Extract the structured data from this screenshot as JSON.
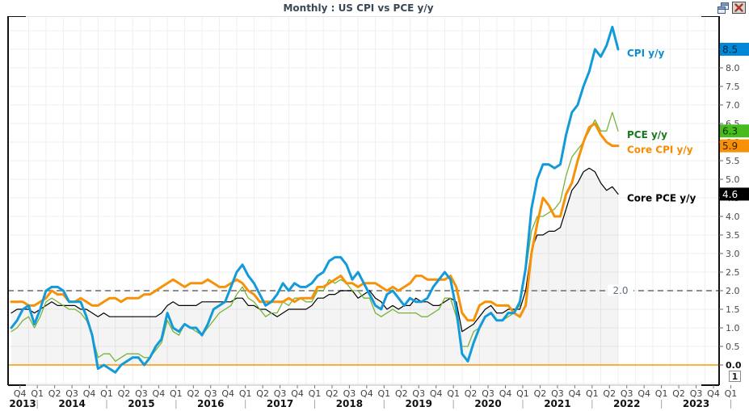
{
  "window": {
    "title": "Monthly : US CPI vs PCE y/y"
  },
  "chart_data": {
    "type": "line",
    "title": "Monthly : US CPI vs PCE y/y",
    "frequency": "monthly",
    "x_start_month": "2013-10",
    "x_end_month": "2022-07",
    "ylim": [
      -0.55,
      9.4
    ],
    "grid": true,
    "legend_position": "inline-right",
    "pane_indicator": "1",
    "colors": {
      "grid": "#efefef",
      "frame_gray": "#c6c6c6",
      "frame_black": "#111111",
      "axis_text": "#3f3f3f",
      "year_text": "#111111",
      "tick_text": "#4a4a4a",
      "title_text": "#3a4856"
    },
    "y_axis": {
      "tick_labels": [
        "0.0",
        "0.5",
        "1.0",
        "1.5",
        "2.0",
        "2.5",
        "3.0",
        "3.5",
        "4.0",
        "4.5",
        "5.0",
        "5.5",
        "6.0",
        "6.5",
        "7.0",
        "7.5",
        "8.0",
        "8.5"
      ]
    },
    "x_axis": {
      "quarter_labels": [
        "Q4",
        "Q1",
        "Q2",
        "Q3",
        "Q4",
        "Q1",
        "Q2",
        "Q3",
        "Q4",
        "Q1",
        "Q2",
        "Q3",
        "Q4",
        "Q1",
        "Q2",
        "Q3",
        "Q4",
        "Q1",
        "Q2",
        "Q3",
        "Q4",
        "Q1",
        "Q2",
        "Q3",
        "Q4",
        "Q1",
        "Q2",
        "Q3",
        "Q4",
        "Q1",
        "Q2",
        "Q3",
        "Q4",
        "Q1",
        "Q2",
        "Q3",
        "Q4",
        "Q1",
        "Q2",
        "Q3",
        "Q4",
        "Q1"
      ],
      "year_labels": [
        "2013",
        "2014",
        "2015",
        "2016",
        "2017",
        "2018",
        "2019",
        "2020",
        "2021",
        "2022",
        "2023"
      ]
    },
    "reference_lines": [
      {
        "value": 2.0,
        "label": "2.0",
        "style": "dashed",
        "color": "#8f8f8f",
        "width": 2,
        "label_color": "#5f6e7e"
      },
      {
        "value": 0.0,
        "style": "solid",
        "color": "#ff9800",
        "width": 1.4
      }
    ],
    "series": [
      {
        "name": "CPI y/y",
        "z": 4,
        "width": 3,
        "line_color": "#129ad9",
        "label_color": "#0d8ecf",
        "badge": {
          "value": "8.5",
          "bg": "#0087d7",
          "text_color": "#002a40"
        },
        "values": [
          1.0,
          1.2,
          1.5,
          1.6,
          1.1,
          1.5,
          2.0,
          2.1,
          2.1,
          2.0,
          1.7,
          1.7,
          1.7,
          1.3,
          0.8,
          -0.1,
          0.0,
          -0.1,
          -0.2,
          0.0,
          0.1,
          0.2,
          0.2,
          0.0,
          0.2,
          0.5,
          0.7,
          1.4,
          1.0,
          0.9,
          1.1,
          1.0,
          1.0,
          0.8,
          1.1,
          1.5,
          1.6,
          1.7,
          2.1,
          2.5,
          2.7,
          2.4,
          2.2,
          1.9,
          1.6,
          1.7,
          1.9,
          2.2,
          2.0,
          2.2,
          2.1,
          2.1,
          2.2,
          2.4,
          2.5,
          2.8,
          2.9,
          2.9,
          2.7,
          2.3,
          2.5,
          2.2,
          1.9,
          1.6,
          1.5,
          1.9,
          2.0,
          1.8,
          1.6,
          1.8,
          1.7,
          1.7,
          1.8,
          2.1,
          2.3,
          2.5,
          2.3,
          1.5,
          0.3,
          0.1,
          0.6,
          1.0,
          1.3,
          1.4,
          1.2,
          1.2,
          1.4,
          1.4,
          1.7,
          2.6,
          4.2,
          5.0,
          5.4,
          5.4,
          5.3,
          5.4,
          6.2,
          6.8,
          7.0,
          7.5,
          7.9,
          8.5,
          8.3,
          8.6,
          9.1,
          8.5
        ]
      },
      {
        "name": "PCE y/y",
        "z": 2,
        "width": 1.3,
        "line_color": "#77b33a",
        "label_color": "#187a1e",
        "badge": {
          "value": "6.3",
          "bg": "#48bb1e",
          "text_color": "#0c3505"
        },
        "values": [
          0.9,
          1.0,
          1.2,
          1.3,
          1.0,
          1.3,
          1.7,
          1.8,
          1.7,
          1.6,
          1.5,
          1.5,
          1.4,
          1.2,
          0.8,
          0.2,
          0.3,
          0.3,
          0.1,
          0.2,
          0.3,
          0.3,
          0.3,
          0.2,
          0.2,
          0.4,
          0.6,
          1.2,
          0.9,
          0.8,
          1.1,
          1.0,
          0.9,
          0.8,
          1.0,
          1.2,
          1.4,
          1.5,
          1.6,
          1.9,
          2.1,
          1.8,
          1.7,
          1.5,
          1.3,
          1.4,
          1.4,
          1.7,
          1.6,
          1.8,
          1.8,
          1.7,
          1.7,
          2.0,
          2.0,
          2.3,
          2.2,
          2.3,
          2.2,
          2.0,
          2.0,
          1.8,
          1.8,
          1.4,
          1.3,
          1.4,
          1.5,
          1.4,
          1.4,
          1.4,
          1.4,
          1.3,
          1.3,
          1.4,
          1.5,
          1.8,
          1.8,
          1.3,
          0.5,
          0.5,
          0.9,
          1.0,
          1.3,
          1.4,
          1.2,
          1.2,
          1.3,
          1.4,
          1.6,
          2.5,
          3.6,
          4.0,
          4.0,
          4.1,
          4.2,
          4.4,
          5.1,
          5.6,
          5.8,
          6.0,
          6.3,
          6.6,
          6.3,
          6.3,
          6.8,
          6.3
        ]
      },
      {
        "name": "Core CPI y/y",
        "z": 3,
        "width": 3,
        "line_color": "#f79208",
        "label_color": "#f78c00",
        "badge": {
          "value": "5.9",
          "bg": "#f79208",
          "text_color": "#3d2300"
        },
        "values": [
          1.7,
          1.7,
          1.7,
          1.6,
          1.6,
          1.7,
          1.8,
          2.0,
          1.9,
          1.9,
          1.7,
          1.7,
          1.8,
          1.7,
          1.6,
          1.6,
          1.7,
          1.8,
          1.8,
          1.7,
          1.8,
          1.8,
          1.8,
          1.9,
          1.9,
          2.0,
          2.1,
          2.2,
          2.3,
          2.2,
          2.1,
          2.2,
          2.2,
          2.2,
          2.3,
          2.2,
          2.1,
          2.1,
          2.2,
          2.3,
          2.2,
          2.0,
          1.9,
          1.7,
          1.7,
          1.7,
          1.7,
          1.7,
          1.8,
          1.7,
          1.8,
          1.8,
          1.8,
          2.1,
          2.1,
          2.2,
          2.3,
          2.4,
          2.2,
          2.2,
          2.1,
          2.2,
          2.2,
          2.2,
          2.1,
          2.0,
          2.1,
          2.0,
          2.1,
          2.2,
          2.4,
          2.4,
          2.3,
          2.3,
          2.3,
          2.3,
          2.4,
          2.1,
          1.4,
          1.2,
          1.2,
          1.6,
          1.7,
          1.7,
          1.6,
          1.6,
          1.6,
          1.4,
          1.3,
          1.6,
          3.0,
          3.8,
          4.5,
          4.3,
          4.0,
          4.0,
          4.6,
          4.9,
          5.5,
          6.0,
          6.4,
          6.5,
          6.2,
          6.0,
          5.9,
          5.9
        ]
      },
      {
        "name": "Core PCE y/y",
        "z": 1,
        "width": 1.2,
        "line_color": "#000000",
        "label_color": "#000000",
        "fill": "rgba(0,0,0,0.045)",
        "badge": {
          "value": "4.6",
          "bg": "#000000",
          "text_color": "#ffffff"
        },
        "values": [
          1.4,
          1.5,
          1.5,
          1.5,
          1.4,
          1.5,
          1.6,
          1.7,
          1.6,
          1.6,
          1.6,
          1.6,
          1.5,
          1.5,
          1.4,
          1.3,
          1.4,
          1.3,
          1.3,
          1.3,
          1.3,
          1.3,
          1.3,
          1.3,
          1.3,
          1.3,
          1.4,
          1.6,
          1.7,
          1.6,
          1.6,
          1.6,
          1.6,
          1.7,
          1.7,
          1.7,
          1.7,
          1.7,
          1.7,
          1.8,
          1.8,
          1.6,
          1.6,
          1.5,
          1.5,
          1.4,
          1.3,
          1.4,
          1.5,
          1.5,
          1.5,
          1.5,
          1.6,
          1.8,
          1.8,
          1.9,
          1.9,
          2.0,
          2.0,
          2.0,
          1.8,
          1.9,
          2.0,
          1.8,
          1.7,
          1.5,
          1.6,
          1.5,
          1.6,
          1.6,
          1.8,
          1.7,
          1.7,
          1.6,
          1.6,
          1.7,
          1.8,
          1.7,
          0.9,
          1.0,
          1.1,
          1.3,
          1.5,
          1.6,
          1.4,
          1.4,
          1.5,
          1.5,
          1.5,
          2.0,
          3.1,
          3.5,
          3.5,
          3.6,
          3.6,
          3.7,
          4.2,
          4.7,
          4.9,
          5.2,
          5.3,
          5.2,
          4.9,
          4.7,
          4.8,
          4.6
        ]
      }
    ]
  }
}
